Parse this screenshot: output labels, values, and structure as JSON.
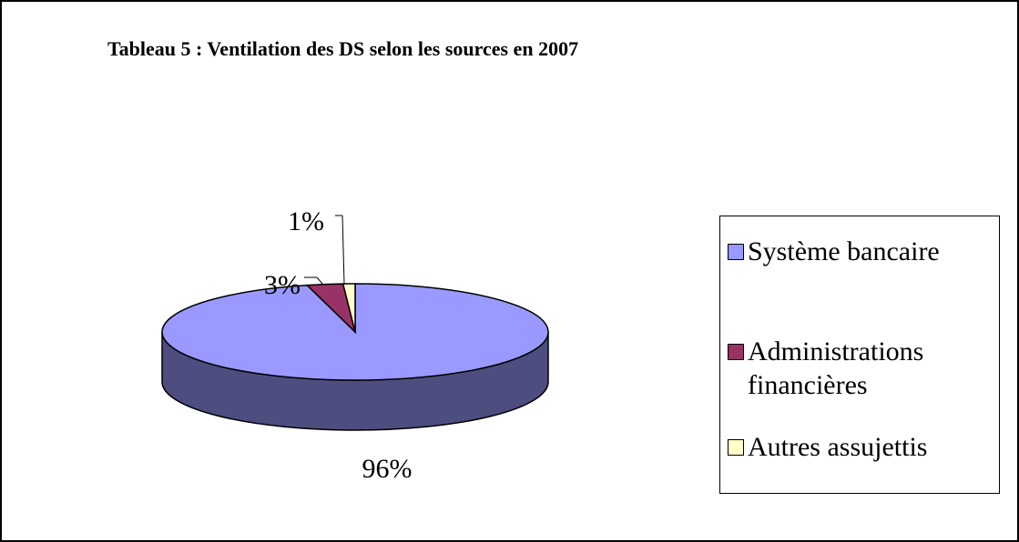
{
  "chart_data": {
    "type": "pie3d",
    "title": "Tableau 5 : Ventilation des DS selon les sources en 2007",
    "categories": [
      "Système bancaire",
      "Administrations financières",
      "Autres assujettis"
    ],
    "values": [
      96,
      3,
      1
    ],
    "value_labels": [
      "96%",
      "3%",
      "1%"
    ],
    "colors": [
      "#9999ff",
      "#993366",
      "#ffffcc"
    ],
    "legend": "right"
  }
}
